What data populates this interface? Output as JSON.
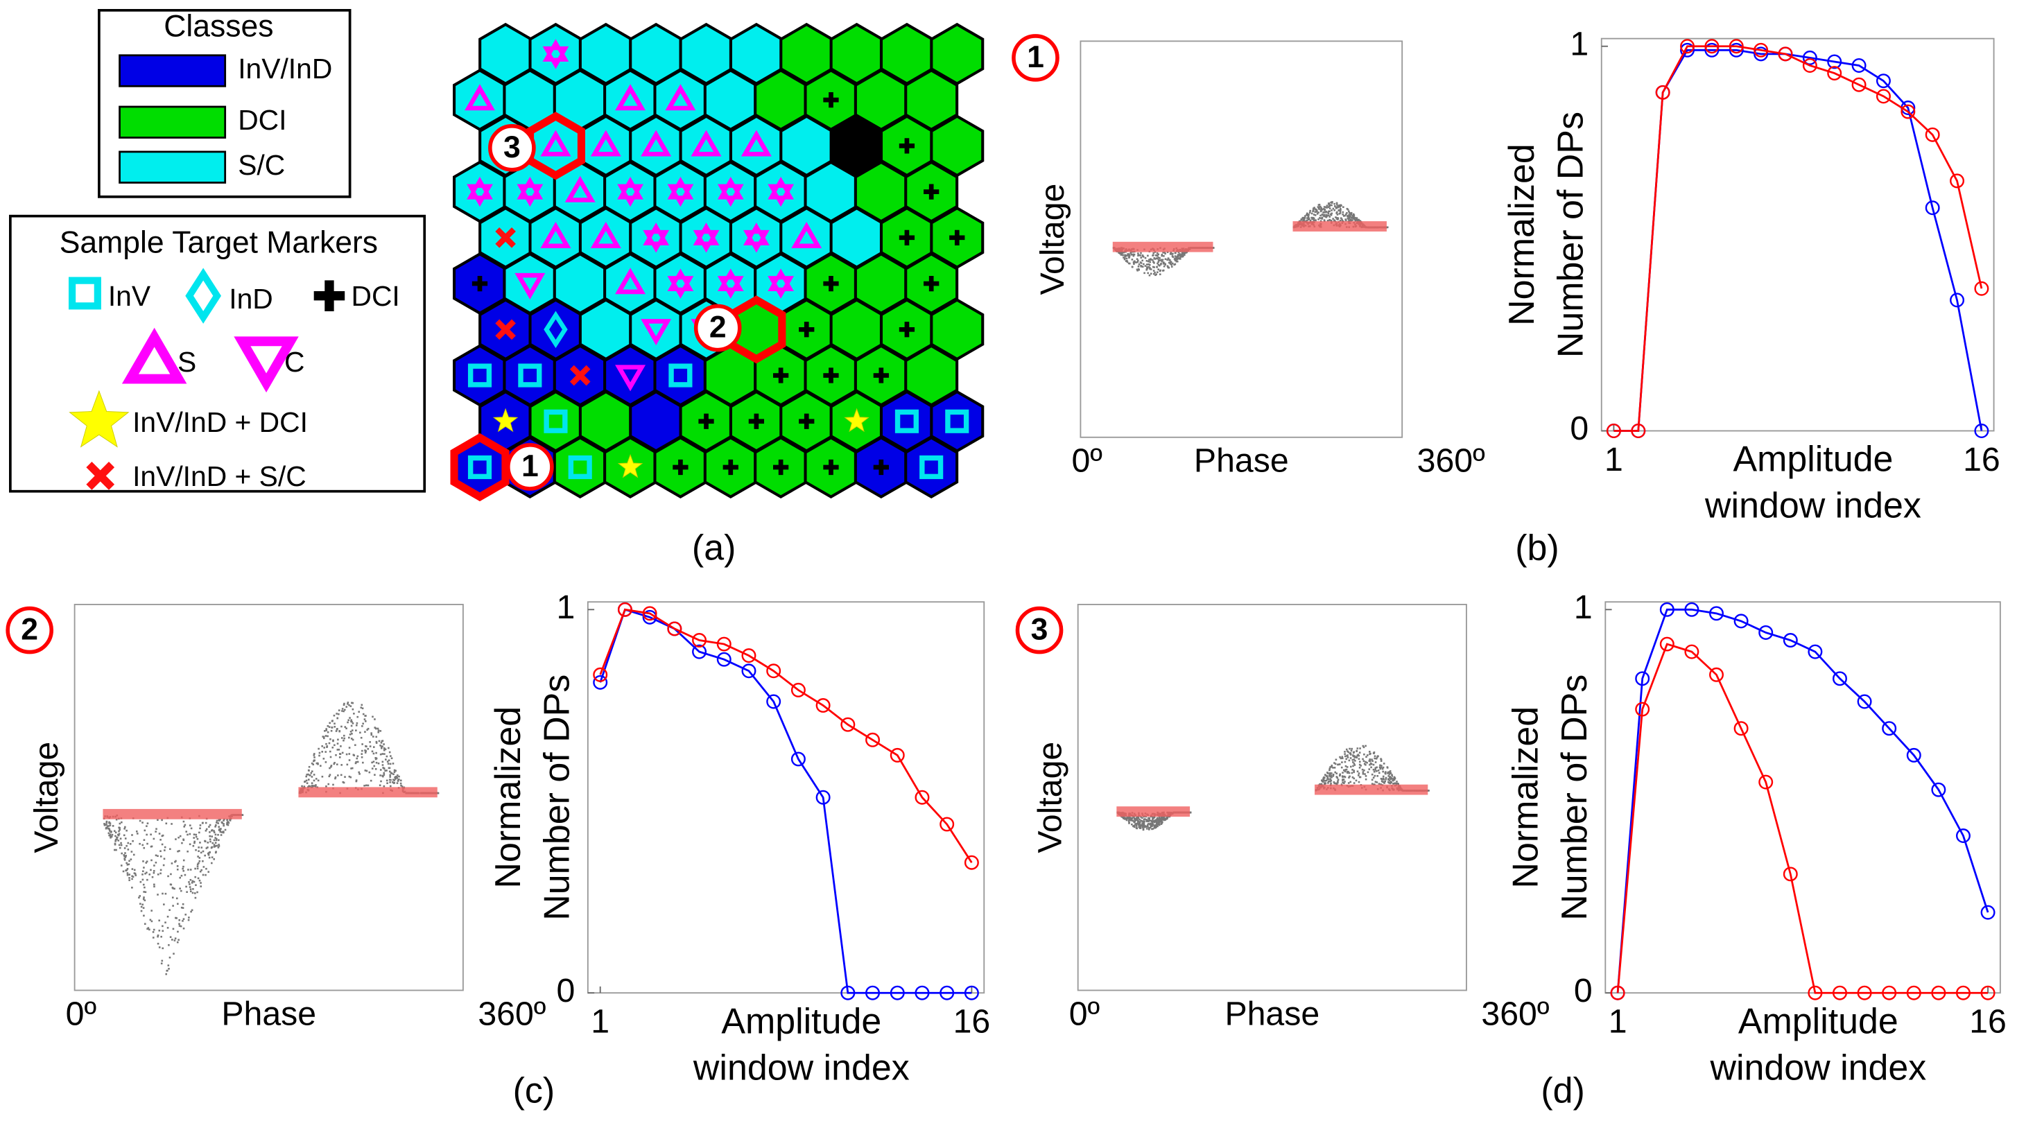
{
  "figure": {
    "captions": [
      "(a)",
      "(b)",
      "(c)",
      "(d)"
    ]
  },
  "legend": {
    "classes_title": "Classes",
    "classes": [
      "InV/InD",
      "DCI",
      "S/C"
    ],
    "markers_title": "Sample Target Markers",
    "markers": [
      "InV",
      "InD",
      "DCI",
      "S",
      "C",
      "InV/InD + DCI",
      "InV/InD + S/C"
    ]
  },
  "som": {
    "highlights": [
      "1",
      "2",
      "3"
    ]
  },
  "phase_panels": [
    {
      "xlabels": [
        "0º",
        "Phase",
        "360º"
      ],
      "ylabel": "Voltage"
    },
    {
      "xlabels": [
        "0º",
        "Phase",
        "360º"
      ],
      "ylabel": "Voltage"
    },
    {
      "xlabels": [
        "0º",
        "Phase",
        "360º"
      ],
      "ylabel": "Voltage"
    }
  ],
  "chart_data": [
    {
      "type": "line",
      "xlabel": [
        "Amplitude",
        "window index"
      ],
      "ylabel": [
        "Normalized",
        "Number of DPs"
      ],
      "x": [
        1,
        2,
        3,
        4,
        5,
        6,
        7,
        8,
        9,
        10,
        11,
        12,
        13,
        14,
        15,
        16
      ],
      "xlim": [
        0.5,
        16.5
      ],
      "xticks": [
        1,
        16
      ],
      "ylim": [
        0,
        1.02
      ],
      "yticks": [
        0,
        1
      ],
      "series": [
        {
          "color": "#0000ff",
          "values": [
            0,
            0,
            0.88,
            0.99,
            0.99,
            0.99,
            0.98,
            0.98,
            0.97,
            0.96,
            0.95,
            0.91,
            0.84,
            0.58,
            0.34,
            0
          ]
        },
        {
          "color": "#ff0000",
          "values": [
            0,
            0,
            0.88,
            1.0,
            1.0,
            1.0,
            0.99,
            0.98,
            0.95,
            0.93,
            0.9,
            0.87,
            0.83,
            0.77,
            0.65,
            0.37
          ]
        }
      ]
    },
    {
      "type": "line",
      "xlabel": [
        "Amplitude",
        "window index"
      ],
      "ylabel": [
        "Normalized",
        "Number of DPs"
      ],
      "x": [
        1,
        2,
        3,
        4,
        5,
        6,
        7,
        8,
        9,
        10,
        11,
        12,
        13,
        14,
        15,
        16
      ],
      "xlim": [
        0.5,
        16.5
      ],
      "xticks": [
        1,
        16
      ],
      "ylim": [
        0,
        1.02
      ],
      "yticks": [
        0,
        1
      ],
      "series": [
        {
          "color": "#0000ff",
          "values": [
            0.81,
            1.0,
            0.98,
            0.95,
            0.89,
            0.87,
            0.84,
            0.76,
            0.61,
            0.51,
            0,
            0,
            0,
            0,
            0,
            0
          ]
        },
        {
          "color": "#ff0000",
          "values": [
            0.83,
            1.0,
            0.99,
            0.95,
            0.92,
            0.91,
            0.88,
            0.84,
            0.79,
            0.75,
            0.7,
            0.66,
            0.62,
            0.51,
            0.44,
            0.34
          ]
        }
      ]
    },
    {
      "type": "line",
      "xlabel": [
        "Amplitude",
        "window index"
      ],
      "ylabel": [
        "Normalized",
        "Number of DPs"
      ],
      "x": [
        1,
        2,
        3,
        4,
        5,
        6,
        7,
        8,
        9,
        10,
        11,
        12,
        13,
        14,
        15,
        16
      ],
      "xlim": [
        0.5,
        16.5
      ],
      "xticks": [
        1,
        16
      ],
      "ylim": [
        0,
        1.02
      ],
      "yticks": [
        0,
        1
      ],
      "series": [
        {
          "color": "#0000ff",
          "values": [
            0,
            0.82,
            1.0,
            1.0,
            0.99,
            0.97,
            0.94,
            0.92,
            0.89,
            0.82,
            0.76,
            0.69,
            0.62,
            0.53,
            0.41,
            0.21
          ]
        },
        {
          "color": "#ff0000",
          "values": [
            0,
            0.74,
            0.91,
            0.89,
            0.83,
            0.69,
            0.55,
            0.31,
            0,
            0,
            0,
            0,
            0,
            0,
            0,
            0
          ]
        }
      ]
    }
  ]
}
